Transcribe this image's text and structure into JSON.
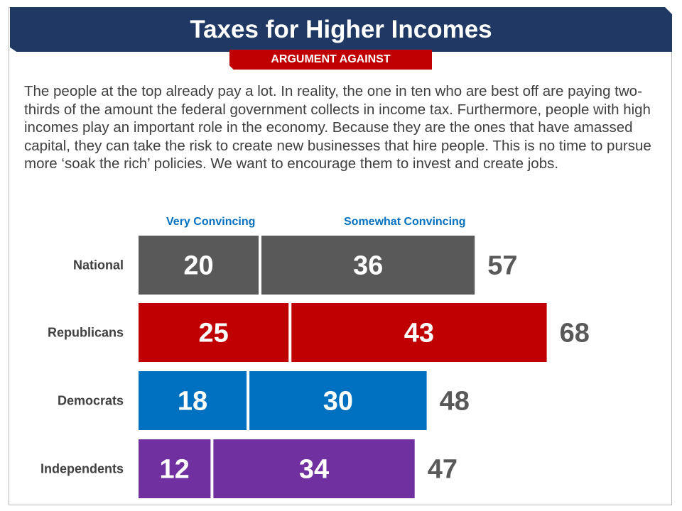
{
  "header": {
    "title": "Taxes for Higher Incomes",
    "subtitle": "ARGUMENT AGAINST"
  },
  "body_text": "The people at the top already pay a lot. In reality, the one in ten who are best off are paying two-thirds of the amount the federal government collects in income tax. Furthermore, people with high incomes play an important role in the economy. Because they are the ones that have amassed capital, they can take the risk to create new businesses that hire people. This is no time to pursue more ‘soak the rich’ policies.  We want to encourage them to invest and create jobs.",
  "colors": {
    "title_bar": "#1f3864",
    "badge": "#c00000",
    "legend_text": "#0070c0",
    "total_text": "#595959",
    "national": "#595959",
    "republicans": "#c00000",
    "democrats": "#0070c0",
    "independents": "#7030a0"
  },
  "chart_data": {
    "type": "bar",
    "orientation": "horizontal",
    "stacked": true,
    "categories": [
      "National",
      "Republicans",
      "Democrats",
      "Independents"
    ],
    "series": [
      {
        "name": "Very Convincing",
        "values": [
          20,
          25,
          18,
          12
        ]
      },
      {
        "name": "Somewhat Convincing",
        "values": [
          36,
          43,
          30,
          34
        ]
      }
    ],
    "totals": [
      57,
      68,
      48,
      47
    ],
    "legend_placement": "top",
    "grid": false
  }
}
